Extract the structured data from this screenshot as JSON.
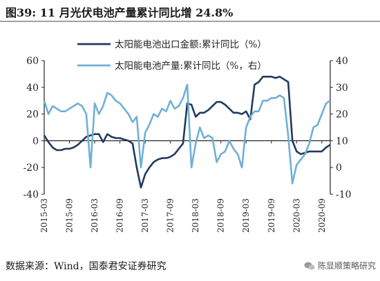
{
  "figure": {
    "title": "图39: 11 月光伏电池产量累计同比增 24.8%",
    "source": "数据来源：Wind，国泰君安证券研究",
    "watermark": "陈显顺策略研究"
  },
  "colors": {
    "series1": "#1f3a5f",
    "series2": "#6fb0d6",
    "axis": "#222222",
    "bg": "#ffffff"
  },
  "chart_data": {
    "type": "line",
    "title": "",
    "xlabel": "",
    "ylabel": "",
    "grid": false,
    "legend_position": "top-center",
    "y_left": {
      "range": [
        -40,
        60
      ],
      "ticks": [
        "-40",
        "-20",
        "0",
        "20",
        "40",
        "60"
      ]
    },
    "y_right": {
      "range": [
        -10,
        40
      ],
      "ticks": [
        "-10",
        "0",
        "10",
        "20",
        "30",
        "40"
      ]
    },
    "x_range": [
      "2015-03",
      "2020-11"
    ],
    "x_ticks": [
      "2015-03",
      "2015-09",
      "2016-03",
      "2016-09",
      "2017-03",
      "2017-09",
      "2018-03",
      "2018-09",
      "2019-03",
      "2019-09",
      "2020-03",
      "2020-09"
    ],
    "series": [
      {
        "name": "太阳能电池出口金额:累计同比（%）",
        "axis": "left",
        "points": [
          [
            "2015-03",
            4
          ],
          [
            "2015-04",
            -1
          ],
          [
            "2015-05",
            -5
          ],
          [
            "2015-06",
            -7
          ],
          [
            "2015-07",
            -7
          ],
          [
            "2015-08",
            -6
          ],
          [
            "2015-09",
            -6
          ],
          [
            "2015-10",
            -5
          ],
          [
            "2015-11",
            -3
          ],
          [
            "2015-12",
            0
          ],
          [
            "2016-01",
            3
          ],
          [
            "2016-02",
            4
          ],
          [
            "2016-03",
            5
          ],
          [
            "2016-04",
            5
          ],
          [
            "2016-05",
            -1
          ],
          [
            "2016-06",
            5
          ],
          [
            "2016-07",
            3
          ],
          [
            "2016-08",
            2
          ],
          [
            "2016-09",
            2
          ],
          [
            "2016-10",
            1
          ],
          [
            "2016-11",
            0
          ],
          [
            "2016-12",
            -2
          ],
          [
            "2017-01",
            -20
          ],
          [
            "2017-02",
            -35
          ],
          [
            "2017-03",
            -25
          ],
          [
            "2017-04",
            -20
          ],
          [
            "2017-05",
            -16
          ],
          [
            "2017-06",
            -14
          ],
          [
            "2017-07",
            -13
          ],
          [
            "2017-08",
            -13
          ],
          [
            "2017-09",
            -12
          ],
          [
            "2017-10",
            -10
          ],
          [
            "2017-11",
            -6
          ],
          [
            "2017-12",
            -2
          ],
          [
            "2018-01",
            28
          ],
          [
            "2018-02",
            27
          ],
          [
            "2018-03",
            18
          ],
          [
            "2018-04",
            21
          ],
          [
            "2018-05",
            21
          ],
          [
            "2018-06",
            23
          ],
          [
            "2018-07",
            26
          ],
          [
            "2018-08",
            29
          ],
          [
            "2018-09",
            29
          ],
          [
            "2018-10",
            27
          ],
          [
            "2018-11",
            24
          ],
          [
            "2018-12",
            21
          ],
          [
            "2019-01",
            21
          ],
          [
            "2019-02",
            20
          ],
          [
            "2019-03",
            22
          ],
          [
            "2019-04",
            16
          ],
          [
            "2019-05",
            42
          ],
          [
            "2019-06",
            44
          ],
          [
            "2019-07",
            48
          ],
          [
            "2019-08",
            48
          ],
          [
            "2019-09",
            48
          ],
          [
            "2019-10",
            47
          ],
          [
            "2019-11",
            48
          ],
          [
            "2019-12",
            46
          ],
          [
            "2020-01",
            44
          ],
          [
            "2020-02",
            0
          ],
          [
            "2020-03",
            -8
          ],
          [
            "2020-04",
            -10
          ],
          [
            "2020-05",
            -9
          ],
          [
            "2020-06",
            -8
          ],
          [
            "2020-07",
            -8
          ],
          [
            "2020-08",
            -8
          ],
          [
            "2020-09",
            -8
          ],
          [
            "2020-10",
            -5
          ],
          [
            "2020-11",
            -3
          ]
        ]
      },
      {
        "name": "太阳能电池产量:累计同比（%，右）",
        "axis": "right",
        "points": [
          [
            "2015-03",
            25
          ],
          [
            "2015-04",
            20
          ],
          [
            "2015-05",
            23
          ],
          [
            "2015-06",
            22
          ],
          [
            "2015-07",
            21
          ],
          [
            "2015-08",
            21
          ],
          [
            "2015-09",
            22
          ],
          [
            "2015-10",
            23
          ],
          [
            "2015-11",
            24
          ],
          [
            "2015-12",
            23
          ],
          [
            "2016-01",
            20
          ],
          [
            "2016-02",
            0
          ],
          [
            "2016-03",
            24
          ],
          [
            "2016-04",
            20
          ],
          [
            "2016-05",
            23
          ],
          [
            "2016-06",
            28
          ],
          [
            "2016-07",
            27
          ],
          [
            "2016-08",
            25
          ],
          [
            "2016-09",
            24
          ],
          [
            "2016-10",
            22
          ],
          [
            "2016-11",
            20
          ],
          [
            "2016-12",
            17
          ],
          [
            "2017-01",
            19
          ],
          [
            "2017-02",
            0
          ],
          [
            "2017-03",
            13
          ],
          [
            "2017-04",
            16
          ],
          [
            "2017-05",
            20
          ],
          [
            "2017-06",
            19
          ],
          [
            "2017-07",
            22
          ],
          [
            "2017-08",
            21
          ],
          [
            "2017-09",
            25
          ],
          [
            "2017-10",
            22
          ],
          [
            "2017-11",
            23
          ],
          [
            "2017-12",
            26
          ],
          [
            "2018-01",
            31
          ],
          [
            "2018-02",
            0
          ],
          [
            "2018-03",
            9
          ],
          [
            "2018-04",
            15
          ],
          [
            "2018-05",
            11
          ],
          [
            "2018-06",
            12
          ],
          [
            "2018-07",
            11
          ],
          [
            "2018-08",
            2
          ],
          [
            "2018-09",
            5
          ],
          [
            "2018-10",
            6
          ],
          [
            "2018-11",
            10
          ],
          [
            "2018-12",
            7
          ],
          [
            "2019-01",
            5
          ],
          [
            "2019-02",
            0
          ],
          [
            "2019-03",
            15
          ],
          [
            "2019-04",
            19
          ],
          [
            "2019-05",
            21
          ],
          [
            "2019-06",
            21
          ],
          [
            "2019-07",
            25
          ],
          [
            "2019-08",
            25
          ],
          [
            "2019-09",
            26
          ],
          [
            "2019-10",
            26
          ],
          [
            "2019-11",
            27
          ],
          [
            "2019-12",
            26
          ],
          [
            "2020-01",
            12
          ],
          [
            "2020-02",
            -6
          ],
          [
            "2020-03",
            1
          ],
          [
            "2020-04",
            3
          ],
          [
            "2020-05",
            5
          ],
          [
            "2020-06",
            9
          ],
          [
            "2020-07",
            15
          ],
          [
            "2020-08",
            16
          ],
          [
            "2020-09",
            20
          ],
          [
            "2020-10",
            24
          ],
          [
            "2020-11",
            25
          ]
        ]
      }
    ]
  }
}
